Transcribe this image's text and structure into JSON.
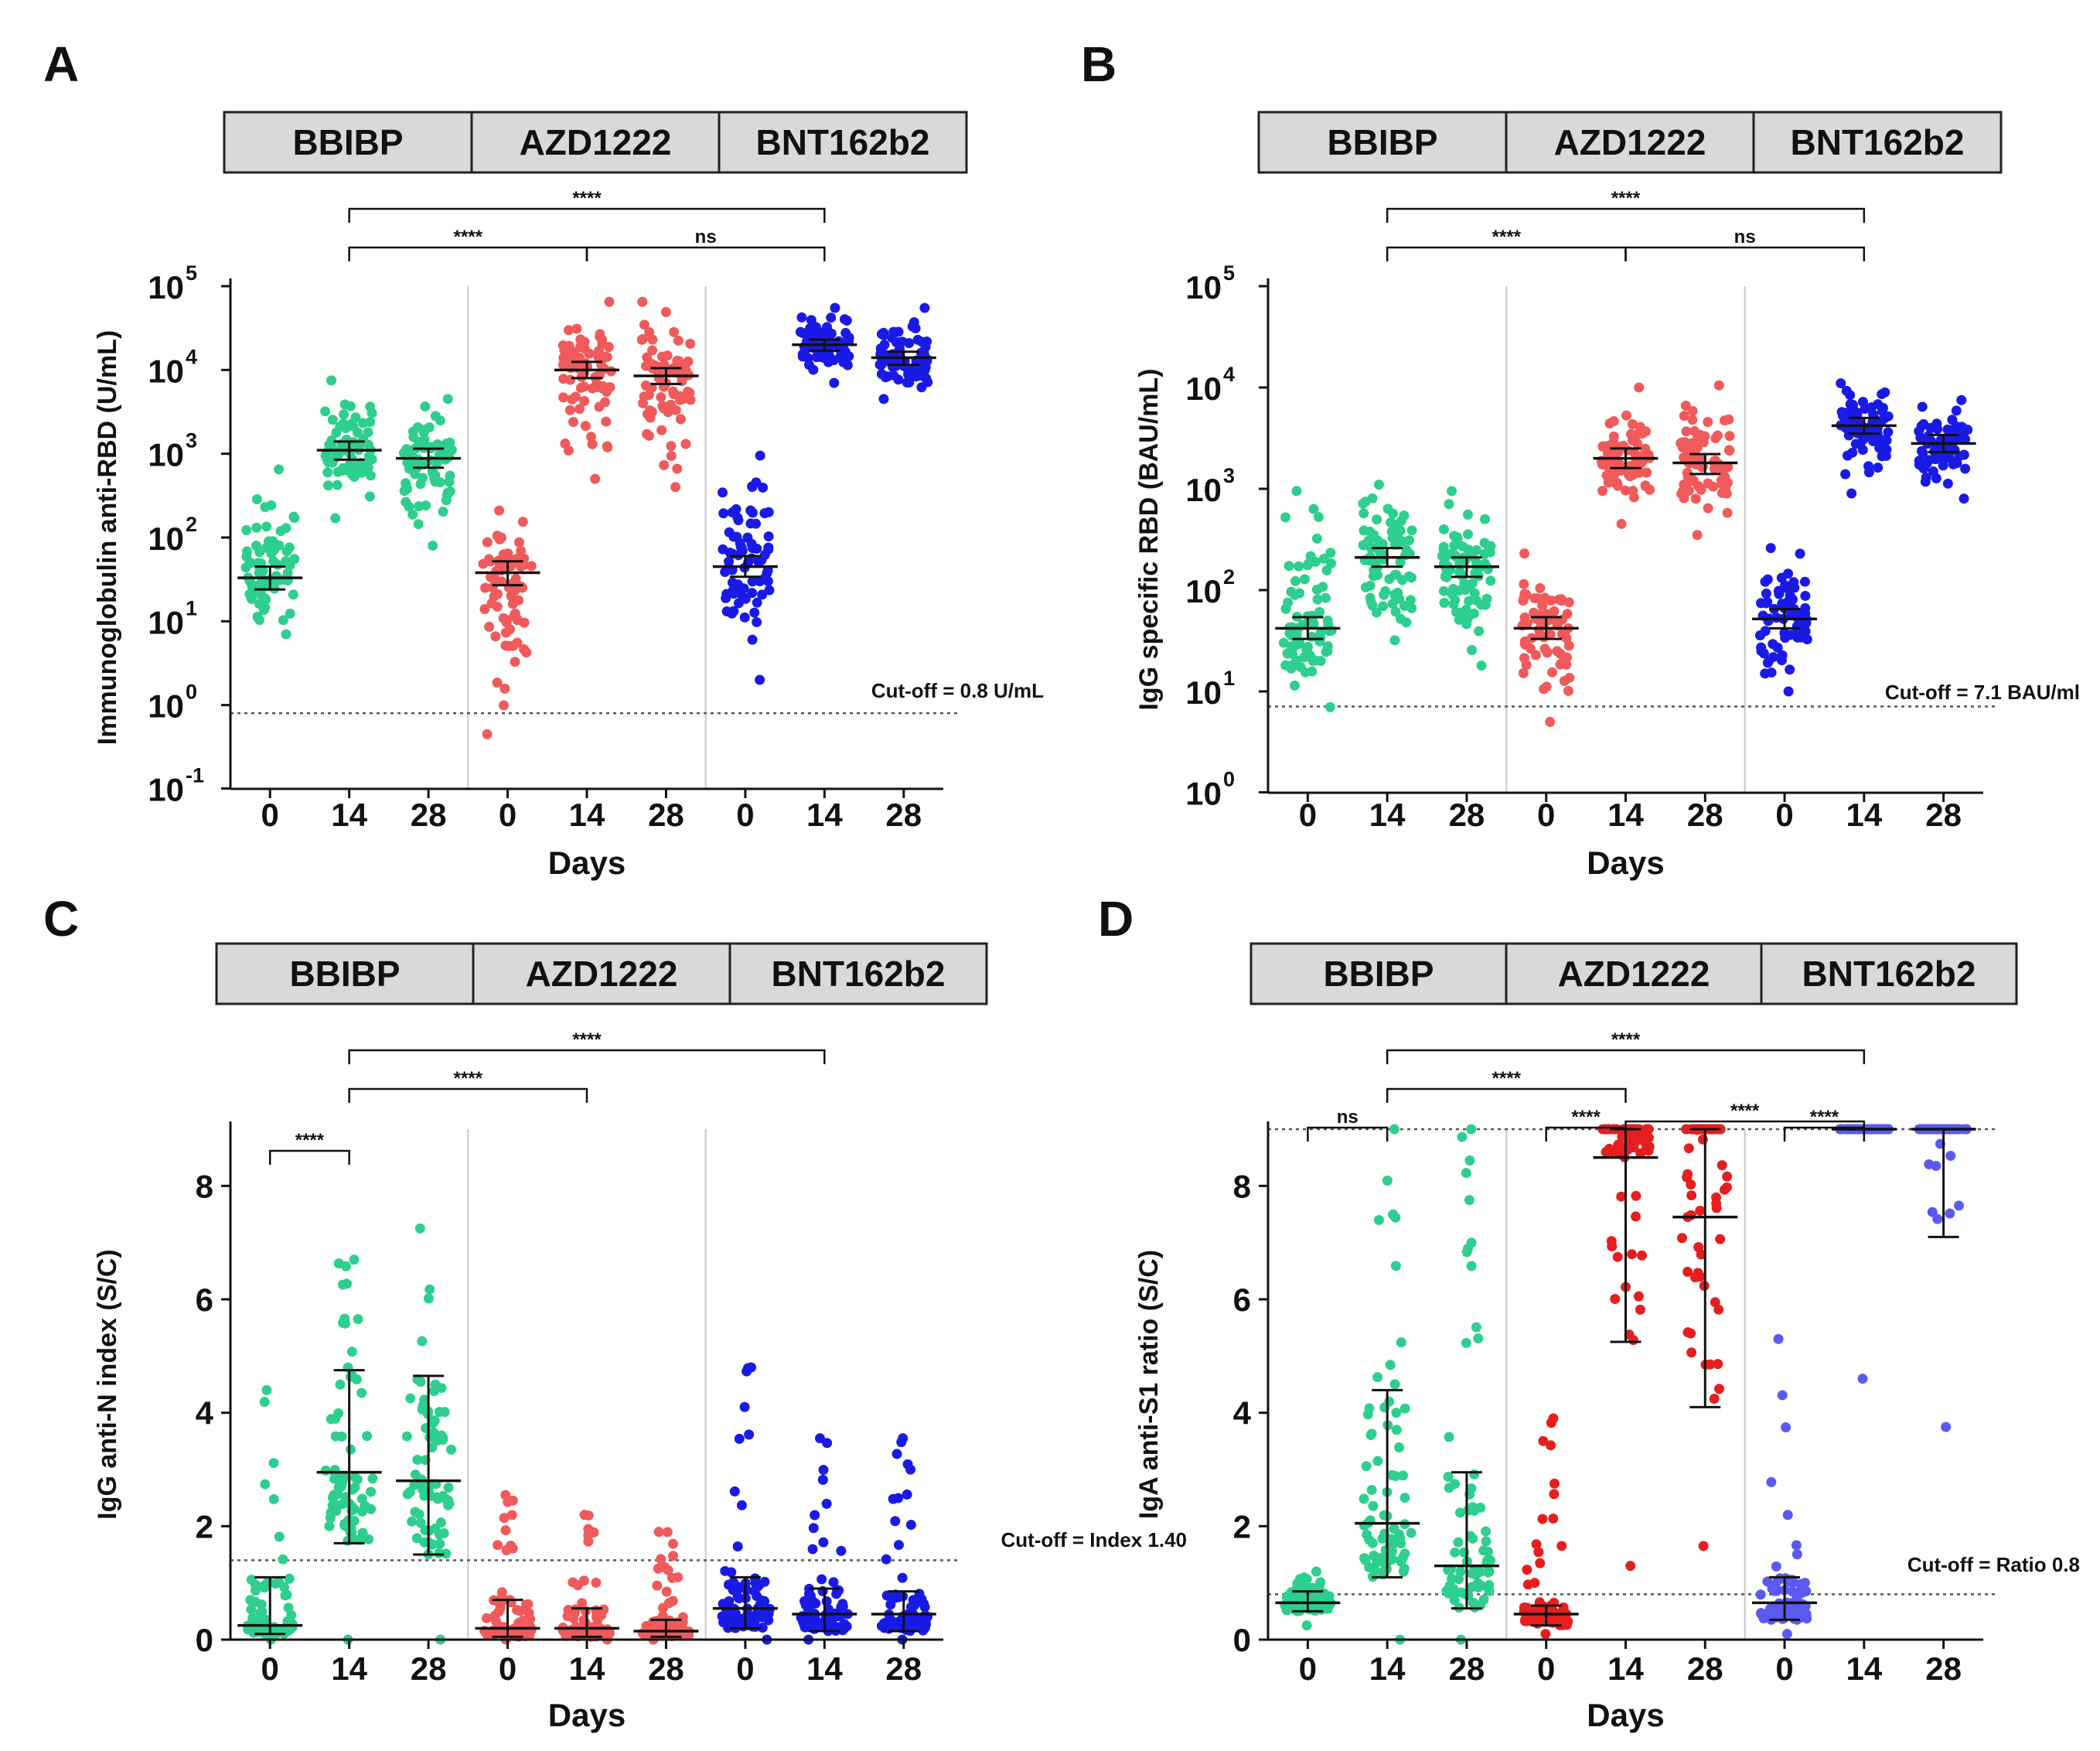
{
  "chart_data": [
    {
      "panel": "A",
      "type": "scatter",
      "groups": [
        "BBIBP",
        "AZD1222",
        "BNT162b2"
      ],
      "categories": [
        "0",
        "14",
        "28",
        "0",
        "14",
        "28",
        "0",
        "14",
        "28"
      ],
      "xlabel": "Days",
      "ylabel": "Immunoglobulin anti-RBD (U/mL)",
      "yscale": "log",
      "ylim": [
        0.1,
        100000
      ],
      "yticks": [
        {
          "base": "10",
          "exp": "5",
          "v": 100000
        },
        {
          "base": "10",
          "exp": "4",
          "v": 10000
        },
        {
          "base": "10",
          "exp": "3",
          "v": 1000
        },
        {
          "base": "10",
          "exp": "2",
          "v": 100
        },
        {
          "base": "10",
          "exp": "1",
          "v": 10
        },
        {
          "base": "10",
          "exp": "0",
          "v": 1
        },
        {
          "base": "10",
          "exp": "-1",
          "v": 0.1
        }
      ],
      "cutoff": {
        "value": 0.8,
        "label": "Cut-off = 0.8 U/mL"
      },
      "summary": [
        {
          "center": 33,
          "low": 24,
          "high": 45,
          "min": 7,
          "max": 650
        },
        {
          "center": 1100,
          "low": 850,
          "high": 1400,
          "min": 170,
          "max": 7500
        },
        {
          "center": 880,
          "low": 680,
          "high": 1150,
          "min": 80,
          "max": 4500
        },
        {
          "center": 38,
          "low": 27,
          "high": 52,
          "min": 0.45,
          "max": 210
        },
        {
          "center": 10000,
          "low": 8000,
          "high": 12500,
          "min": 500,
          "max": 65000
        },
        {
          "center": 8500,
          "low": 6800,
          "high": 10500,
          "min": 400,
          "max": 65000
        },
        {
          "center": 45,
          "low": 34,
          "high": 60,
          "min": 2,
          "max": 950
        },
        {
          "center": 20000,
          "low": 17000,
          "high": 23000,
          "min": 7000,
          "max": 55000
        },
        {
          "center": 14000,
          "low": 11500,
          "high": 16500,
          "min": 4500,
          "max": 55000
        }
      ],
      "comparisons": [
        {
          "from": 1,
          "to": 7,
          "label": "****"
        },
        {
          "from": 1,
          "to": 4,
          "label": "****"
        },
        {
          "from": 4,
          "to": 7,
          "label": "ns"
        }
      ]
    },
    {
      "panel": "B",
      "type": "scatter",
      "groups": [
        "BBIBP",
        "AZD1222",
        "BNT162b2"
      ],
      "categories": [
        "0",
        "14",
        "28",
        "0",
        "14",
        "28",
        "0",
        "14",
        "28"
      ],
      "xlabel": "Days",
      "ylabel": "IgG specific RBD (BAU/mL)",
      "yscale": "log",
      "ylim": [
        1,
        100000
      ],
      "yticks": [
        {
          "base": "10",
          "exp": "5",
          "v": 100000
        },
        {
          "base": "10",
          "exp": "4",
          "v": 10000
        },
        {
          "base": "10",
          "exp": "3",
          "v": 1000
        },
        {
          "base": "10",
          "exp": "2",
          "v": 100
        },
        {
          "base": "10",
          "exp": "1",
          "v": 10
        },
        {
          "base": "10",
          "exp": "0",
          "v": 1
        }
      ],
      "cutoff": {
        "value": 7.1,
        "label": "Cut-off = 7.1 BAU/ml"
      },
      "summary": [
        {
          "center": 42,
          "low": 33,
          "high": 54,
          "min": 7,
          "max": 950
        },
        {
          "center": 210,
          "low": 170,
          "high": 260,
          "min": 32,
          "max": 1100
        },
        {
          "center": 170,
          "low": 135,
          "high": 210,
          "min": 18,
          "max": 950
        },
        {
          "center": 42,
          "low": 33,
          "high": 54,
          "min": 5,
          "max": 230
        },
        {
          "center": 2000,
          "low": 1600,
          "high": 2500,
          "min": 450,
          "max": 10000
        },
        {
          "center": 1800,
          "low": 1400,
          "high": 2200,
          "min": 350,
          "max": 10500
        },
        {
          "center": 52,
          "low": 42,
          "high": 65,
          "min": 10,
          "max": 260
        },
        {
          "center": 4200,
          "low": 3500,
          "high": 5000,
          "min": 900,
          "max": 11000
        },
        {
          "center": 2800,
          "low": 2300,
          "high": 3400,
          "min": 800,
          "max": 7500
        }
      ],
      "comparisons": [
        {
          "from": 1,
          "to": 7,
          "label": "****"
        },
        {
          "from": 1,
          "to": 4,
          "label": "****"
        },
        {
          "from": 4,
          "to": 7,
          "label": "ns"
        }
      ]
    },
    {
      "panel": "C",
      "type": "scatter",
      "groups": [
        "BBIBP",
        "AZD1222",
        "BNT162b2"
      ],
      "categories": [
        "0",
        "14",
        "28",
        "0",
        "14",
        "28",
        "0",
        "14",
        "28"
      ],
      "xlabel": "Days",
      "ylabel": "IgG anti-N index (S/C)",
      "yscale": "linear",
      "ylim": [
        0,
        9
      ],
      "yticks": [
        0,
        2,
        4,
        6,
        8
      ],
      "cutoff": {
        "value": 1.4,
        "label": "Cut-off = Index 1.40"
      },
      "summary": [
        {
          "center": 0.25,
          "low": 0.1,
          "high": 1.1,
          "min": 0,
          "max": 4.4
        },
        {
          "center": 2.95,
          "low": 1.7,
          "high": 4.75,
          "min": 0,
          "max": 6.7
        },
        {
          "center": 2.8,
          "low": 1.5,
          "high": 4.65,
          "min": 0,
          "max": 7.25
        },
        {
          "center": 0.2,
          "low": 0.05,
          "high": 0.7,
          "min": 0,
          "max": 2.55
        },
        {
          "center": 0.2,
          "low": 0.05,
          "high": 0.55,
          "min": 0,
          "max": 2.2
        },
        {
          "center": 0.15,
          "low": 0.05,
          "high": 0.35,
          "min": 0,
          "max": 1.9
        },
        {
          "center": 0.55,
          "low": 0.2,
          "high": 1.1,
          "min": 0,
          "max": 4.8
        },
        {
          "center": 0.45,
          "low": 0.15,
          "high": 0.9,
          "min": 0,
          "max": 3.55
        },
        {
          "center": 0.45,
          "low": 0.15,
          "high": 0.85,
          "min": 0,
          "max": 3.55
        }
      ],
      "comparisons": [
        {
          "from": 1,
          "to": 7,
          "label": "****"
        },
        {
          "from": 1,
          "to": 4,
          "label": "****"
        },
        {
          "from": 0,
          "to": 1,
          "label": "****"
        }
      ]
    },
    {
      "panel": "D",
      "type": "scatter",
      "groups": [
        "BBIBP",
        "AZD1222",
        "BNT162b2"
      ],
      "categories": [
        "0",
        "14",
        "28",
        "0",
        "14",
        "28",
        "0",
        "14",
        "28"
      ],
      "xlabel": "Days",
      "ylabel": "IgA anti-S1 ratio (S/C)",
      "yscale": "linear",
      "ylim": [
        0,
        9
      ],
      "yticks": [
        0,
        2,
        4,
        6,
        8
      ],
      "cutoff": {
        "value": 0.8,
        "label": "Cut-off = Ratio 0.8"
      },
      "upper_limit": 9,
      "summary": [
        {
          "center": 0.65,
          "low": 0.5,
          "high": 0.85,
          "min": 0.25,
          "max": 1.2
        },
        {
          "center": 2.05,
          "low": 1.1,
          "high": 4.4,
          "min": 0,
          "max": 9
        },
        {
          "center": 1.3,
          "low": 0.55,
          "high": 2.95,
          "min": 0,
          "max": 9
        },
        {
          "center": 0.45,
          "low": 0.25,
          "high": 0.6,
          "min": 0.1,
          "max": 3.9
        },
        {
          "center": 8.5,
          "low": 5.25,
          "high": 9,
          "min": 1.3,
          "max": 9
        },
        {
          "center": 7.45,
          "low": 4.1,
          "high": 9,
          "min": 1.65,
          "max": 9
        },
        {
          "center": 0.65,
          "low": 0.35,
          "high": 1.1,
          "min": 0.1,
          "max": 5.3
        },
        {
          "center": 9,
          "low": 9,
          "high": 9,
          "min": 4.6,
          "max": 9
        },
        {
          "center": 9,
          "low": 7.1,
          "high": 9,
          "min": 3.75,
          "max": 9
        }
      ],
      "comparisons": [
        {
          "from": 1,
          "to": 7,
          "label": "****"
        },
        {
          "from": 1,
          "to": 4,
          "label": "****"
        },
        {
          "from": 4,
          "to": 7,
          "label": "****"
        },
        {
          "from": 0,
          "to": 1,
          "label": "ns"
        },
        {
          "from": 3,
          "to": 4,
          "label": "****"
        },
        {
          "from": 6,
          "to": 7,
          "label": "****"
        }
      ]
    }
  ],
  "colors": {
    "BBIBP": "#2ecf8e",
    "AZD1222": "#f05a5a",
    "BNT162b2": "#1a1ae6",
    "AZD1222_D": "#e61e1e",
    "BNT162b2_D": "#5a5af0"
  }
}
